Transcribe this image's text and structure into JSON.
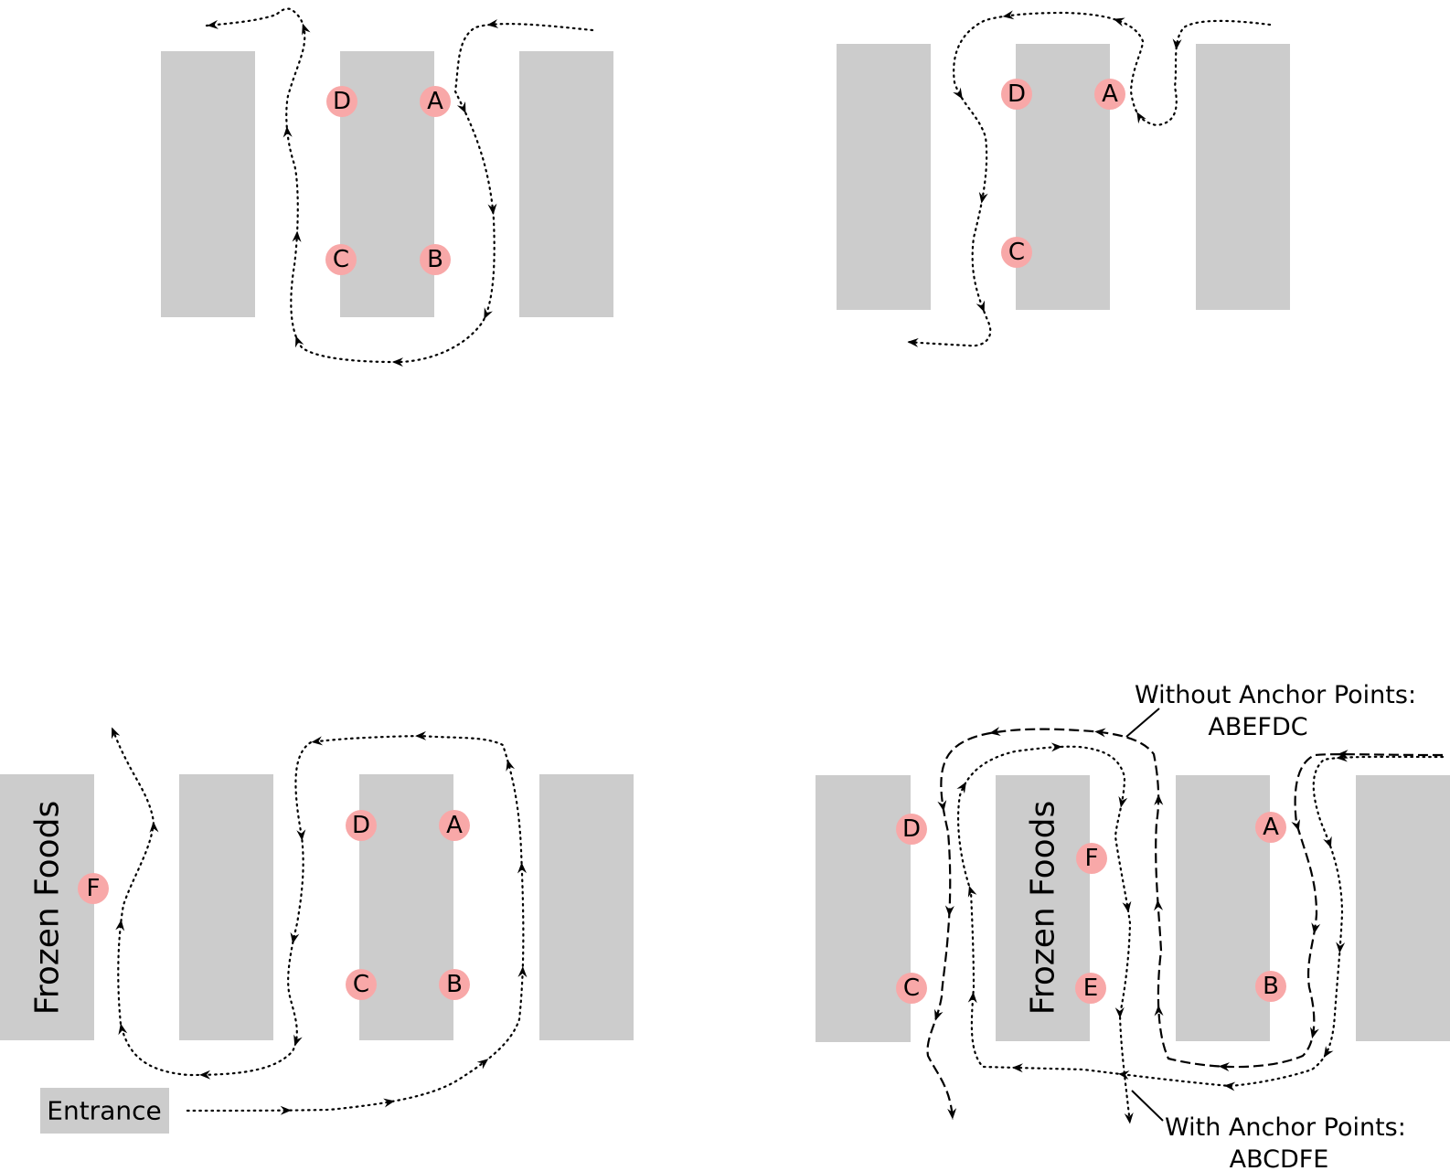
{
  "markers": {
    "A": "A",
    "B": "B",
    "C": "C",
    "D": "D",
    "E": "E",
    "F": "F"
  },
  "labels": {
    "frozen_foods": "Frozen Foods",
    "entrance": "Entrance",
    "without_anchor_title": "Without Anchor Points:",
    "without_anchor_sequence": "ABEFDC",
    "with_anchor_title": "With Anchor Points:",
    "with_anchor_sequence": "ABCDFE"
  },
  "colors": {
    "shelf": "#cccccc",
    "marker": "#f8a8a8",
    "path": "#000000"
  }
}
